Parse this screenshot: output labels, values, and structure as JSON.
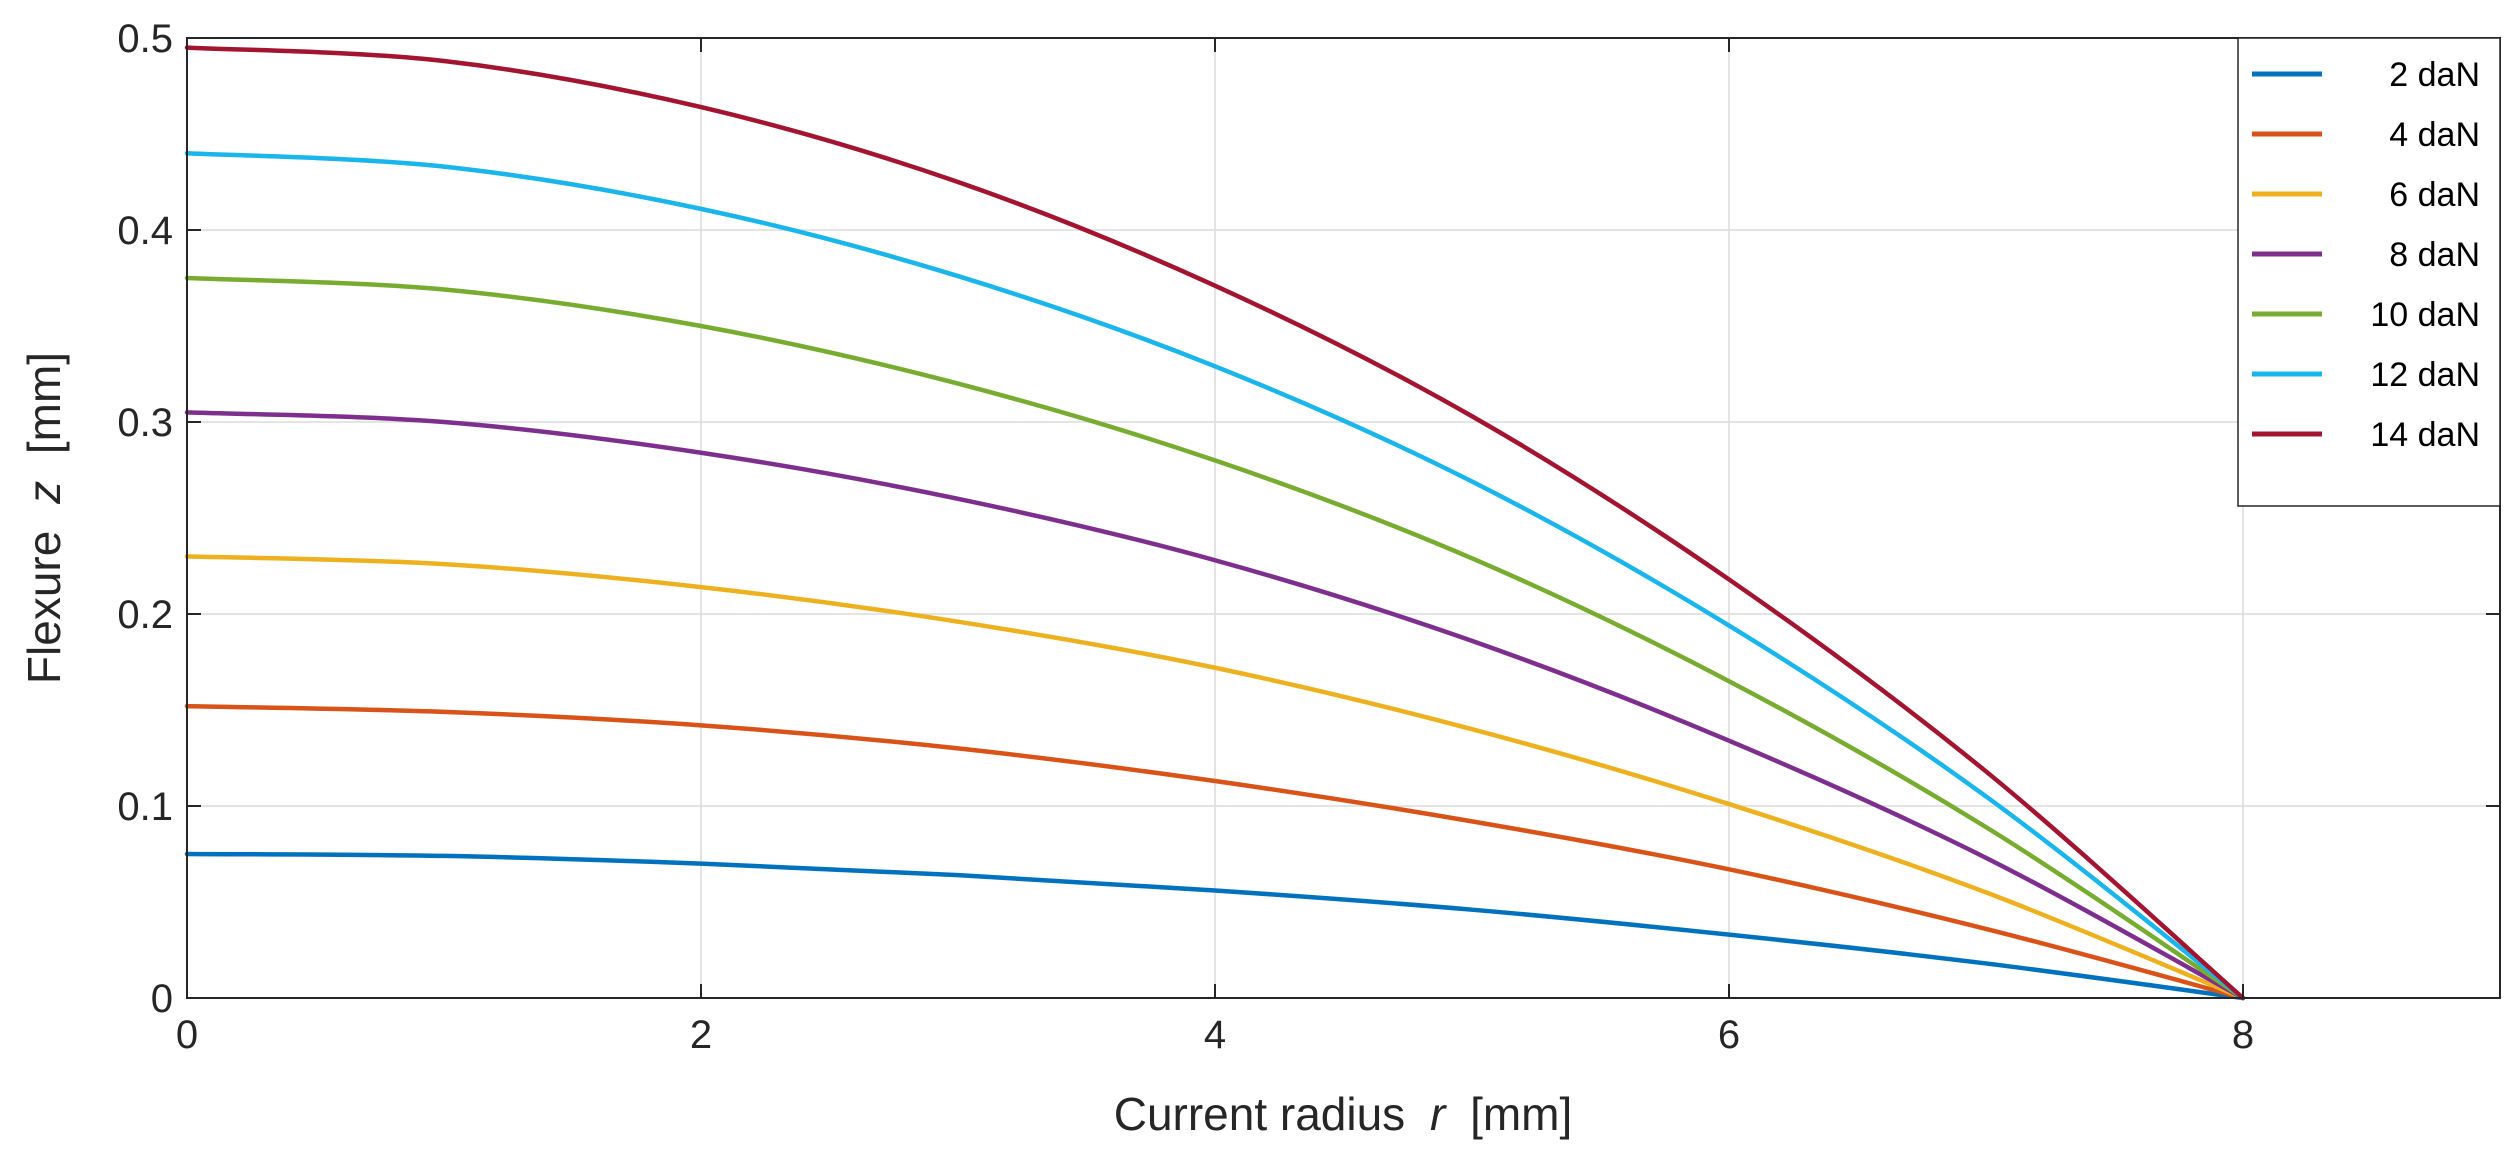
{
  "chart_data": {
    "type": "line",
    "title": "",
    "xlabel_prefix": "Current radius",
    "xlabel_var": "r",
    "xlabel_unit": "[mm]",
    "ylabel_prefix": "Flexure",
    "ylabel_var": "z",
    "ylabel_unit": "[mm]",
    "xlim": [
      0,
      9
    ],
    "ylim": [
      0,
      0.5
    ],
    "xticks": [
      0,
      2,
      4,
      6,
      8
    ],
    "xtick_labels": [
      "0",
      "2",
      "4",
      "6",
      "8"
    ],
    "yticks": [
      0,
      0.1,
      0.2,
      0.3,
      0.4,
      0.5
    ],
    "ytick_labels": [
      "0",
      "0.1",
      "0.2",
      "0.3",
      "0.4",
      "0.5"
    ],
    "grid": true,
    "legend_position": "top-right",
    "x": [
      0,
      1,
      2,
      3,
      4,
      5,
      6,
      7,
      8
    ],
    "series": [
      {
        "name": "2 daN",
        "color": "#0072BD",
        "values": [
          0.075,
          0.074,
          0.07,
          0.064,
          0.056,
          0.046,
          0.033,
          0.018,
          0.0
        ]
      },
      {
        "name": "4 daN",
        "color": "#D95319",
        "values": [
          0.152,
          0.149,
          0.142,
          0.13,
          0.113,
          0.092,
          0.067,
          0.036,
          0.0
        ]
      },
      {
        "name": "6 daN",
        "color": "#EDB120",
        "values": [
          0.23,
          0.226,
          0.214,
          0.196,
          0.172,
          0.14,
          0.101,
          0.055,
          0.0
        ]
      },
      {
        "name": "8 daN",
        "color": "#7E2F8E",
        "values": [
          0.305,
          0.3,
          0.284,
          0.26,
          0.228,
          0.186,
          0.134,
          0.073,
          0.0
        ]
      },
      {
        "name": "10 daN",
        "color": "#77AC30",
        "values": [
          0.375,
          0.369,
          0.35,
          0.32,
          0.28,
          0.229,
          0.165,
          0.089,
          0.0
        ]
      },
      {
        "name": "12 daN",
        "color": "#1AB5EA",
        "values": [
          0.44,
          0.433,
          0.411,
          0.376,
          0.329,
          0.269,
          0.194,
          0.105,
          0.0
        ]
      },
      {
        "name": "14 daN",
        "color": "#A2142F",
        "values": [
          0.495,
          0.488,
          0.464,
          0.425,
          0.371,
          0.303,
          0.218,
          0.118,
          0.0
        ]
      }
    ]
  }
}
